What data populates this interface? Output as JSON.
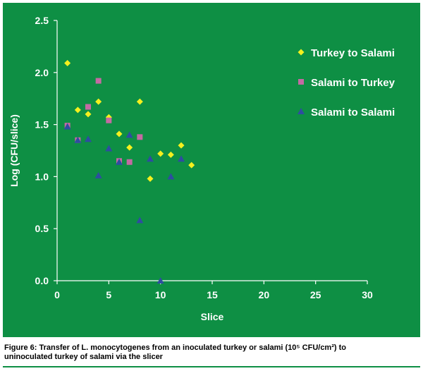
{
  "chart_data": {
    "type": "scatter",
    "xlabel": "Slice",
    "ylabel": "Log (CFU/slice)",
    "xlim": [
      0,
      30
    ],
    "ylim": [
      0,
      2.5
    ],
    "x_ticks": [
      "0",
      "5",
      "10",
      "15",
      "20",
      "25",
      "30"
    ],
    "y_ticks": [
      "0.0",
      "0.5",
      "1.0",
      "1.5",
      "2.0",
      "2.5"
    ],
    "grid": false,
    "legend_position": "top-right",
    "series": [
      {
        "name": "Turkey to Salami",
        "marker": "diamond",
        "color": "#f5f01e",
        "points": [
          [
            1,
            2.09
          ],
          [
            2,
            1.64
          ],
          [
            3,
            1.6
          ],
          [
            4,
            1.72
          ],
          [
            5,
            1.57
          ],
          [
            6,
            1.41
          ],
          [
            7,
            1.28
          ],
          [
            8,
            1.72
          ],
          [
            9,
            0.98
          ],
          [
            10,
            1.22
          ],
          [
            11,
            1.21
          ],
          [
            12,
            1.3
          ],
          [
            13,
            1.11
          ]
        ]
      },
      {
        "name": "Salami to Turkey",
        "marker": "square",
        "color": "#c46aa3",
        "points": [
          [
            1,
            1.49
          ],
          [
            2,
            1.35
          ],
          [
            3,
            1.67
          ],
          [
            4,
            1.92
          ],
          [
            5,
            1.54
          ],
          [
            6,
            1.15
          ],
          [
            7,
            1.14
          ],
          [
            8,
            1.38
          ]
        ]
      },
      {
        "name": "Salami to Salami",
        "marker": "triangle",
        "color": "#2e4da0",
        "points": [
          [
            1,
            1.48
          ],
          [
            2,
            1.35
          ],
          [
            3,
            1.36
          ],
          [
            4,
            1.01
          ],
          [
            5,
            1.27
          ],
          [
            6,
            1.14
          ],
          [
            7,
            1.4
          ],
          [
            8,
            0.58
          ],
          [
            9,
            1.17
          ],
          [
            10,
            0.0
          ],
          [
            11,
            1.0
          ],
          [
            12,
            1.17
          ]
        ]
      }
    ]
  },
  "caption": {
    "line1": "Figure 6: Transfer of L. monocytogenes from an inoculated turkey or salami (10⁵ CFU/cm²) to",
    "line2": "uninoculated turkey of salami via the slicer"
  }
}
